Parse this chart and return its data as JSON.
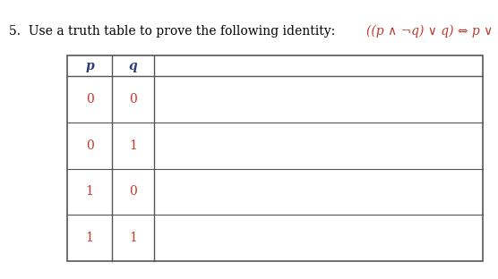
{
  "title_number": "5.",
  "title_text": "  Use a truth table to prove the following identity: ",
  "formula": "((p ∧ ¬q) ∨ q) ⇔ p ∨ q.",
  "bg_color": "#ffffff",
  "text_color": "#000000",
  "formula_color": "#c0392b",
  "table_header": [
    "p",
    "q"
  ],
  "table_rows": [
    [
      "0",
      "0"
    ],
    [
      "0",
      "1"
    ],
    [
      "1",
      "0"
    ],
    [
      "1",
      "1"
    ]
  ],
  "header_text_color": "#2c3e7a",
  "cell_text_color": "#c0392b",
  "line_color": "#555555",
  "title_fontsize": 10,
  "cell_fontsize": 10,
  "header_fontsize": 10
}
